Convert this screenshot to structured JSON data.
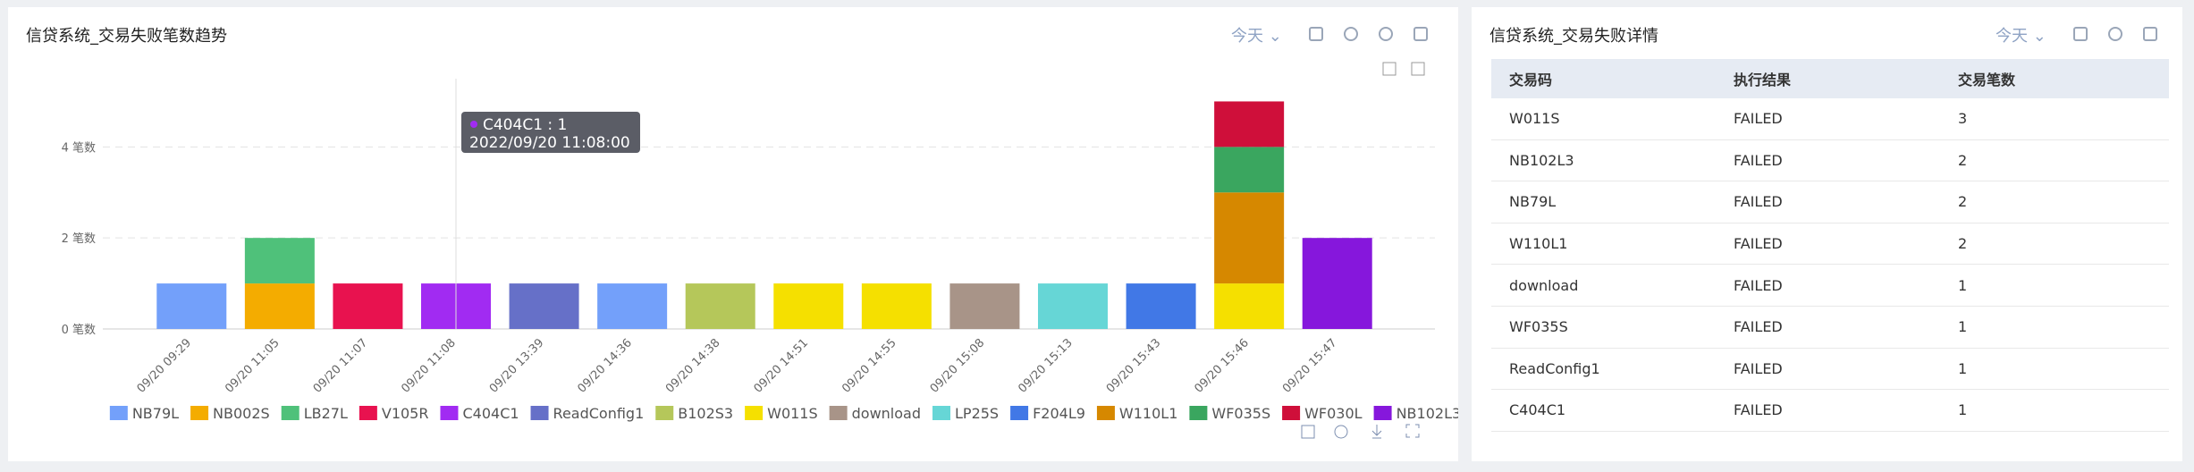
{
  "left_panel": {
    "title": "信贷系统_交易失败笔数趋势",
    "range": "今天"
  },
  "chart_data": {
    "type": "bar",
    "stacked": true,
    "categories": [
      "09/20 09:29",
      "09/20 11:05",
      "09/20 11:07",
      "09/20 11:08",
      "09/20 13:39",
      "09/20 14:36",
      "09/20 14:38",
      "09/20 14:51",
      "09/20 14:55",
      "09/20 15:08",
      "09/20 15:13",
      "09/20 15:43",
      "09/20 15:46",
      "09/20 15:47"
    ],
    "series": [
      {
        "name": "NB79L",
        "color": "#73a0fa",
        "values": [
          1,
          null,
          null,
          null,
          null,
          1,
          null,
          null,
          null,
          null,
          null,
          null,
          null,
          null
        ]
      },
      {
        "name": "NB002S",
        "color": "#f4ac00",
        "values": [
          null,
          1,
          null,
          null,
          null,
          null,
          null,
          null,
          null,
          null,
          null,
          null,
          null,
          null
        ]
      },
      {
        "name": "LB27L",
        "color": "#4fc17a",
        "values": [
          null,
          1,
          null,
          null,
          null,
          null,
          null,
          null,
          null,
          null,
          null,
          null,
          null,
          null
        ]
      },
      {
        "name": "V105R",
        "color": "#e8124f",
        "values": [
          null,
          null,
          1,
          null,
          null,
          null,
          null,
          null,
          null,
          null,
          null,
          null,
          null,
          null
        ]
      },
      {
        "name": "C404C1",
        "color": "#a12bf2",
        "values": [
          null,
          null,
          null,
          1,
          null,
          null,
          null,
          null,
          null,
          null,
          null,
          null,
          null,
          null
        ]
      },
      {
        "name": "ReadConfig1",
        "color": "#6670c8",
        "values": [
          null,
          null,
          null,
          null,
          1,
          null,
          null,
          null,
          null,
          null,
          null,
          null,
          null,
          null
        ]
      },
      {
        "name": "B102S3",
        "color": "#b5c75a",
        "values": [
          null,
          null,
          null,
          null,
          null,
          null,
          1,
          null,
          null,
          null,
          null,
          null,
          null,
          null
        ]
      },
      {
        "name": "W011S",
        "color": "#f5e000",
        "values": [
          null,
          null,
          null,
          null,
          null,
          null,
          null,
          1,
          1,
          null,
          null,
          null,
          1,
          null
        ]
      },
      {
        "name": "download",
        "color": "#a89488",
        "values": [
          null,
          null,
          null,
          null,
          null,
          null,
          null,
          null,
          null,
          1,
          null,
          null,
          null,
          null
        ]
      },
      {
        "name": "LP25S",
        "color": "#66d6d6",
        "values": [
          null,
          null,
          null,
          null,
          null,
          null,
          null,
          null,
          null,
          null,
          1,
          null,
          null,
          null
        ]
      },
      {
        "name": "F204L9",
        "color": "#4178e6",
        "values": [
          null,
          null,
          null,
          null,
          null,
          null,
          null,
          null,
          null,
          null,
          null,
          1,
          null,
          null
        ]
      },
      {
        "name": "W110L1",
        "color": "#d68800",
        "values": [
          null,
          null,
          null,
          null,
          null,
          null,
          null,
          null,
          null,
          null,
          null,
          null,
          2,
          null
        ]
      },
      {
        "name": "WF035S",
        "color": "#3aa65f",
        "values": [
          null,
          null,
          null,
          null,
          null,
          null,
          null,
          null,
          null,
          null,
          null,
          null,
          1,
          null
        ]
      },
      {
        "name": "WF030L",
        "color": "#cf0f3a",
        "values": [
          null,
          null,
          null,
          null,
          null,
          null,
          null,
          null,
          null,
          null,
          null,
          null,
          1,
          null
        ]
      },
      {
        "name": "NB102L3",
        "color": "#8617dc",
        "values": [
          null,
          null,
          null,
          null,
          null,
          null,
          null,
          null,
          null,
          null,
          null,
          null,
          null,
          2
        ]
      }
    ],
    "ylim": [
      0,
      5.5
    ],
    "yticks": [
      {
        "value": 0,
        "label": "0 笔数"
      },
      {
        "value": 2,
        "label": "2 笔数"
      },
      {
        "value": 4,
        "label": "4 笔数"
      }
    ],
    "grid": true,
    "tooltip": {
      "line1": "C404C1 : 1",
      "line2": "2022/09/20 11:08:00"
    }
  },
  "right_panel": {
    "title": "信贷系统_交易失败详情",
    "range": "今天",
    "table": {
      "columns": [
        "交易码",
        "执行结果",
        "交易笔数"
      ],
      "rows": [
        [
          "W011S",
          "FAILED",
          3
        ],
        [
          "NB102L3",
          "FAILED",
          2
        ],
        [
          "NB79L",
          "FAILED",
          2
        ],
        [
          "W110L1",
          "FAILED",
          2
        ],
        [
          "download",
          "FAILED",
          1
        ],
        [
          "WF035S",
          "FAILED",
          1
        ],
        [
          "ReadConfig1",
          "FAILED",
          1
        ],
        [
          "C404C1",
          "FAILED",
          1
        ]
      ]
    }
  }
}
